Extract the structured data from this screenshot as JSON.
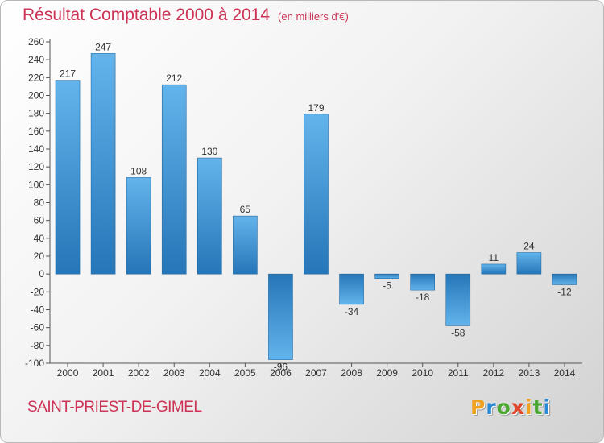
{
  "title": "Résultat Comptable 2000 à 2014",
  "unit": "(en milliers d'€)",
  "footer": "SAINT-PRIEST-DE-GIMEL",
  "logo": {
    "letters": [
      "P",
      "r",
      "o",
      "x",
      "i",
      "t",
      "i"
    ]
  },
  "colors": {
    "title": "#cc3355",
    "bar_light": "#5daee8",
    "bar_dark": "#2a7fc0"
  },
  "chart_data": {
    "type": "bar",
    "title": "Résultat Comptable 2000 à 2014",
    "xlabel": "",
    "ylabel": "",
    "categories": [
      "2000",
      "2001",
      "2002",
      "2003",
      "2004",
      "2005",
      "2006",
      "2007",
      "2008",
      "2009",
      "2010",
      "2011",
      "2012",
      "2013",
      "2014"
    ],
    "values": [
      217,
      247,
      108,
      212,
      130,
      65,
      -96,
      179,
      -34,
      -5,
      -18,
      -58,
      11,
      24,
      -12
    ],
    "value_labels": [
      "217",
      "247",
      "108",
      "212",
      "130",
      "65",
      "-96",
      "179",
      "-34",
      "-5",
      "-18",
      "-58",
      "11",
      "24",
      "-12"
    ],
    "ylim": [
      -100,
      260
    ],
    "yticks": [
      260,
      240,
      220,
      200,
      180,
      160,
      140,
      120,
      100,
      80,
      60,
      40,
      20,
      0,
      -20,
      -40,
      -60,
      -80,
      -100
    ],
    "grid": false
  }
}
